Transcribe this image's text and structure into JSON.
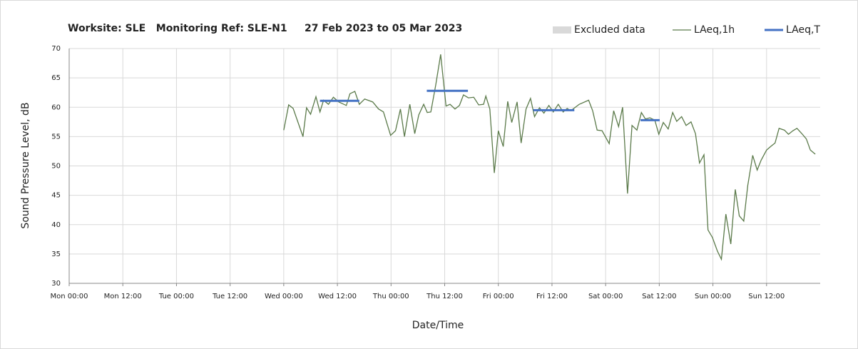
{
  "chart_data": {
    "type": "line",
    "title": "Worksite: SLE   Monitoring Ref: SLE-N1     27 Feb 2023 to 05 Mar 2023",
    "x_label": "Date/Time",
    "y_label": "Sound Pressure Level, dB",
    "xlim": [
      0,
      168
    ],
    "xticks": [
      {
        "value": 0,
        "label": "Mon 00:00"
      },
      {
        "value": 12,
        "label": "Mon 12:00"
      },
      {
        "value": 24,
        "label": "Tue 00:00"
      },
      {
        "value": 36,
        "label": "Tue 12:00"
      },
      {
        "value": 48,
        "label": "Wed 00:00"
      },
      {
        "value": 60,
        "label": "Wed 12:00"
      },
      {
        "value": 72,
        "label": "Thu 00:00"
      },
      {
        "value": 84,
        "label": "Thu 12:00"
      },
      {
        "value": 96,
        "label": "Fri 00:00"
      },
      {
        "value": 108,
        "label": "Fri 12:00"
      },
      {
        "value": 120,
        "label": "Sat 00:00"
      },
      {
        "value": 132,
        "label": "Sat 12:00"
      },
      {
        "value": 144,
        "label": "Sun 00:00"
      },
      {
        "value": 156,
        "label": "Sun 12:00"
      }
    ],
    "ylim": [
      30,
      70
    ],
    "yticks": [
      30,
      35,
      40,
      45,
      50,
      55,
      60,
      65,
      70
    ],
    "grid": true,
    "series": [
      {
        "name": "Excluded data",
        "color": "#d9d9d9",
        "x": [],
        "values": []
      },
      {
        "name": "LAeq,1h",
        "color": "#5b7a4a",
        "x": [
          48,
          49.1,
          50.1,
          52.3,
          53.1,
          54,
          55.2,
          56.1,
          56.9,
          58,
          59.1,
          60.3,
          62,
          62.8,
          63.9,
          64.9,
          66.1,
          67.9,
          69.2,
          70.3,
          71.9,
          73,
          74.1,
          75,
          76.2,
          77.3,
          78.2,
          79.3,
          80.1,
          80.9,
          82,
          83.1,
          84.3,
          85.2,
          86.3,
          87.3,
          88.2,
          89.3,
          90.5,
          91.6,
          92.7,
          93.2,
          94.1,
          95.1,
          96,
          97.1,
          98.1,
          99,
          100.2,
          101.1,
          102.2,
          103.2,
          104.1,
          105.2,
          106.2,
          107.3,
          108.3,
          109.4,
          110.5,
          111.4,
          112.2,
          114.1,
          116.2,
          117.1,
          118.1,
          119.2,
          120.8,
          121.8,
          122.9,
          123.8,
          124.9,
          125.9,
          127,
          128,
          128.9,
          129.9,
          131,
          131.9,
          132.9,
          134,
          135,
          135.9,
          137,
          138,
          139.1,
          140.1,
          141,
          142,
          142.9,
          143.9,
          145,
          145.9,
          146.9,
          148,
          149,
          149.9,
          150.9,
          151.8,
          152.9,
          153.9,
          154.8,
          156,
          156.9,
          157.9,
          158.8,
          160,
          160.9,
          161.9,
          162.8,
          163.9,
          164.9,
          165.8,
          166.9
        ],
        "values": [
          56.1,
          60.4,
          59.8,
          55,
          59.9,
          58.8,
          61.8,
          59.2,
          61.2,
          60.5,
          61.7,
          60.9,
          60.3,
          62.3,
          62.7,
          60.5,
          61.4,
          60.9,
          59.7,
          59.2,
          55.2,
          56,
          59.7,
          55,
          60.5,
          55.5,
          58.7,
          60.5,
          59.1,
          59.2,
          63.8,
          69,
          60.2,
          60.5,
          59.7,
          60.3,
          62.1,
          61.6,
          61.7,
          60.4,
          60.5,
          61.9,
          59.7,
          48.8,
          56,
          53.3,
          61,
          57.4,
          60.9,
          53.9,
          59.7,
          61.5,
          58.4,
          59.9,
          59,
          60.3,
          59.2,
          60.5,
          59.2,
          59.8,
          59.4,
          60.5,
          61.2,
          59.4,
          56.1,
          56,
          53.8,
          59.4,
          56.7,
          60,
          45.3,
          56.9,
          56.1,
          59.1,
          58,
          58.2,
          57.8,
          55.4,
          57.4,
          56.3,
          59.1,
          57.6,
          58.4,
          56.9,
          57.5,
          55.5,
          50.5,
          51.9,
          39.1,
          37.8,
          35.5,
          34.1,
          41.8,
          36.7,
          46,
          41.5,
          40.6,
          46.7,
          51.8,
          49.3,
          51,
          52.7,
          53.3,
          53.9,
          56.4,
          56.1,
          55.4,
          56,
          56.4,
          55.5,
          54.6,
          52.7,
          52
        ]
      },
      {
        "name": "LAeq,T",
        "color": "#4472c4",
        "segments": [
          {
            "x": [
              56.1,
              64.9
            ],
            "value": 61.1
          },
          {
            "x": [
              80,
              89.2
            ],
            "value": 62.8
          },
          {
            "x": [
              103.8,
              113
            ],
            "value": 59.5
          },
          {
            "x": [
              127.8,
              132.1
            ],
            "value": 57.8
          }
        ]
      }
    ]
  }
}
